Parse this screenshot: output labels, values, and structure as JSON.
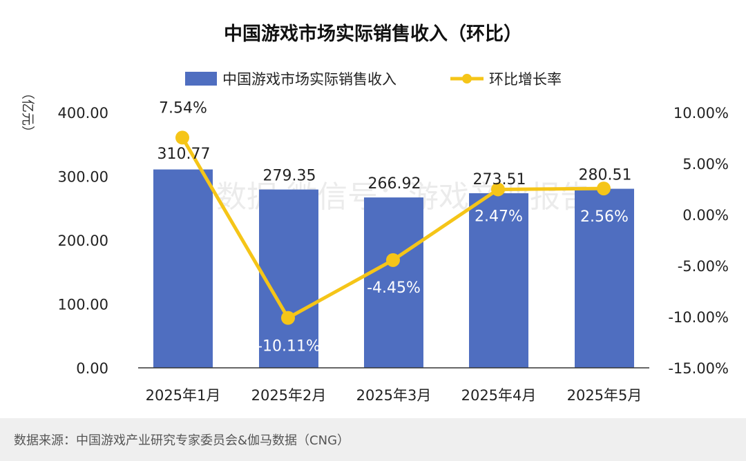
{
  "chart_data": {
    "type": "bar",
    "title": "中国游戏市场实际销售收入（环比）",
    "categories": [
      "2025年1月",
      "2025年2月",
      "2025年3月",
      "2025年4月",
      "2025年5月"
    ],
    "series": [
      {
        "name": "中国游戏市场实际销售收入",
        "type": "bar",
        "axis": "left",
        "values": [
          310.77,
          279.35,
          266.92,
          273.51,
          280.51
        ],
        "labels": [
          "310.77",
          "279.35",
          "266.92",
          "273.51",
          "280.51"
        ]
      },
      {
        "name": "环比增长率",
        "type": "line",
        "axis": "right",
        "values": [
          7.54,
          -10.11,
          -4.45,
          2.47,
          2.56
        ],
        "labels": [
          "7.54%",
          "-10.11%",
          "-4.45%",
          "2.47%",
          "2.56%"
        ]
      }
    ],
    "ylabel": "（亿元）",
    "ylim": [
      0,
      400
    ],
    "y_ticks": [
      "0.00",
      "100.00",
      "200.00",
      "300.00",
      "400.00"
    ],
    "y2lim": [
      -15,
      10
    ],
    "y2_ticks": [
      "-15.00%",
      "-10.00%",
      "-5.00%",
      "0.00%",
      "5.00%",
      "10.00%"
    ],
    "legend": "top-center",
    "grid": false,
    "colors": {
      "bar": "#4f6ec0",
      "line": "#f5c518",
      "text": "#222222",
      "axis": "#333333"
    },
    "watermark": "伽马数据 微信号：游戏产业报告"
  },
  "footer": {
    "source": "数据来源：中国游戏产业研究专家委员会&伽马数据（CNG）"
  }
}
